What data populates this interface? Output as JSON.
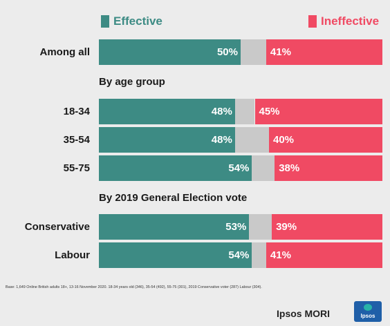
{
  "legend": {
    "effective": "Effective",
    "ineffective": "Ineffective"
  },
  "colors": {
    "effective": "#3d8b84",
    "ineffective": "#f04a63",
    "neutral": "#c9c9c9",
    "effective_text": "#3d8b84",
    "ineffective_text": "#f04a63"
  },
  "chart_data": {
    "type": "bar",
    "orientation": "horizontal",
    "stacked": true,
    "xlim": [
      0,
      100
    ],
    "series": [
      {
        "name": "Effective",
        "values": [
          50,
          48,
          48,
          54,
          53,
          54
        ]
      },
      {
        "name": "Ineffective",
        "values": [
          41,
          45,
          40,
          38,
          39,
          41
        ]
      }
    ],
    "rows": [
      {
        "label": "Among all",
        "effective": 50,
        "ineffective": 41,
        "effective_label": "50%",
        "ineffective_label": "41%"
      },
      {
        "section": "By age group"
      },
      {
        "label": "18-34",
        "effective": 48,
        "ineffective": 45,
        "effective_label": "48%",
        "ineffective_label": "45%"
      },
      {
        "label": "35-54",
        "effective": 48,
        "ineffective": 40,
        "effective_label": "48%",
        "ineffective_label": "40%"
      },
      {
        "label": "55-75",
        "effective": 54,
        "ineffective": 38,
        "effective_label": "54%",
        "ineffective_label": "38%"
      },
      {
        "section": "By 2019 General Election vote"
      },
      {
        "label": "Conservative",
        "effective": 53,
        "ineffective": 39,
        "effective_label": "53%",
        "ineffective_label": "39%"
      },
      {
        "label": "Labour",
        "effective": 54,
        "ineffective": 41,
        "effective_label": "54%",
        "ineffective_label": "41%"
      }
    ]
  },
  "footer": {
    "base_note": "Base: 1,649 Online British adults 18+, 13-16 November 2020. 18-34 years old (346), 35-54 (492), 55-75 (301), 2019 Conservative voter (287) Labour (304).",
    "brand": "Ipsos MORI",
    "logo_text": "Ipsos"
  }
}
